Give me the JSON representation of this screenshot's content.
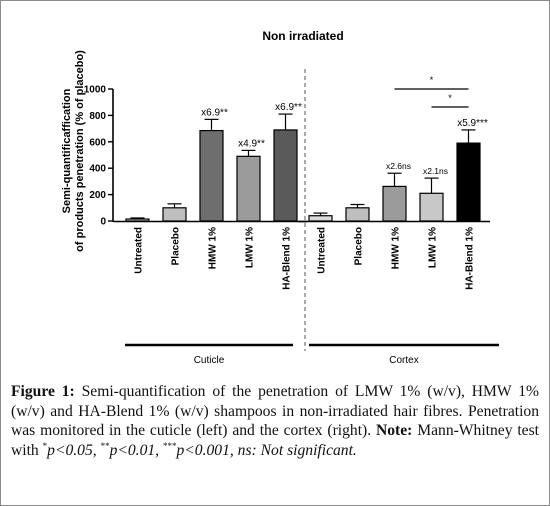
{
  "chart_data": {
    "type": "bar",
    "title": "Non irradiated",
    "ylabel": "Semi-quantificaffication\nof products penetration (% of placebo)",
    "ylim": [
      0,
      1000
    ],
    "yticks": [
      "0",
      "200",
      "400",
      "600",
      "800",
      "1000"
    ],
    "groups": [
      {
        "label": "Cuticle",
        "bars": [
          {
            "category": "Untreated",
            "value": 15,
            "error": 8,
            "annotation": "",
            "color": "#d9d9d9"
          },
          {
            "category": "Placebo",
            "value": 100,
            "error": 30,
            "annotation": "",
            "color": "#bfbfbf"
          },
          {
            "category": "HMW 1%",
            "value": 685,
            "error": 85,
            "annotation": "x6.9**",
            "color": "#6e6e6e"
          },
          {
            "category": "LMW 1%",
            "value": 490,
            "error": 45,
            "annotation": "x4.9**",
            "color": "#9b9b9b"
          },
          {
            "category": "HA-Blend 1%",
            "value": 690,
            "error": 120,
            "annotation": "x6.9**",
            "color": "#5a5a5a"
          }
        ]
      },
      {
        "label": "Cortex",
        "bars": [
          {
            "category": "Untreated",
            "value": 40,
            "error": 20,
            "annotation": "",
            "color": "#d9d9d9"
          },
          {
            "category": "Placebo",
            "value": 100,
            "error": 25,
            "annotation": "",
            "color": "#bfbfbf"
          },
          {
            "category": "HMW 1%",
            "value": 262,
            "error": 100,
            "annotation": "x2.6ns",
            "color": "#9b9b9b"
          },
          {
            "category": "LMW 1%",
            "value": 210,
            "error": 115,
            "annotation": "x2.1ns",
            "color": "#c8c8c8"
          },
          {
            "category": "HA-Blend 1%",
            "value": 590,
            "error": 100,
            "annotation": "x5.9***",
            "color": "#000000"
          }
        ]
      }
    ],
    "significance": [
      {
        "group": "Cortex",
        "from": "HMW 1%",
        "to": "HA-Blend 1%",
        "label": "*"
      },
      {
        "group": "Cortex",
        "from": "LMW 1%",
        "to": "HA-Blend 1%",
        "label": "*"
      }
    ]
  },
  "caption": {
    "label": "Figure 1:",
    "text": "Semi-quantification of the penetration of LMW 1% (w/v), HMW 1% (w/v) and HA-Blend 1% (w/v) shampoos in non-irradiated hair fibres. Penetration was monitored in the cuticle (left) and the cortex (right).",
    "note_label": "Note:",
    "note_text": "Mann-Whitney test with",
    "sig_1_mark": "*",
    "sig_1_text": "p<0.05,",
    "sig_2_mark": "**",
    "sig_2_text": "p<0.01,",
    "sig_3_mark": "***",
    "sig_3_text": "p<0.001, ns: Not significant."
  }
}
